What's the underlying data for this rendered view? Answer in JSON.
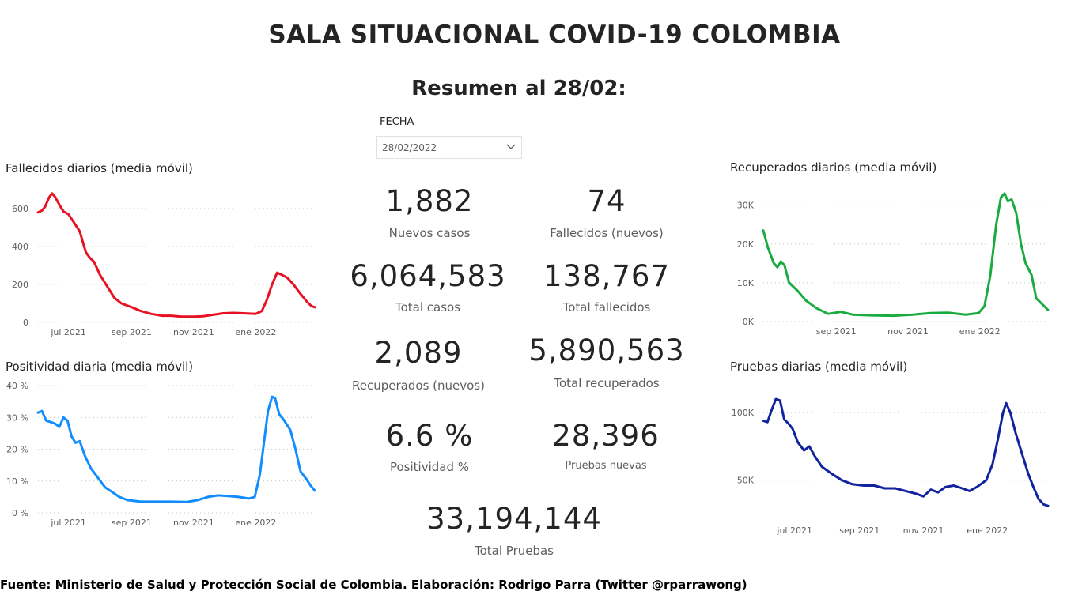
{
  "header": {
    "title": "SALA SITUACIONAL COVID-19 COLOMBIA",
    "subtitle": "Resumen al 28/02:"
  },
  "filter": {
    "label": "FECHA",
    "value": "28/02/2022",
    "icon": "chevron-down-icon"
  },
  "kpis": {
    "nuevos_casos": {
      "value": "1,882",
      "label": "Nuevos casos"
    },
    "fallecidos_nuevos": {
      "value": "74",
      "label": "Fallecidos (nuevos)"
    },
    "total_casos": {
      "value": "6,064,583",
      "label": "Total casos"
    },
    "total_fallecidos": {
      "value": "138,767",
      "label": "Total fallecidos"
    },
    "recuperados_nuevos": {
      "value": "2,089",
      "label": "Recuperados (nuevos)"
    },
    "total_recuperados": {
      "value": "5,890,563",
      "label": "Total recuperados"
    },
    "positividad": {
      "value": "6.6 %",
      "label": "Positividad %"
    },
    "pruebas_nuevas": {
      "value": "28,396",
      "label": "Pruebas nuevas"
    },
    "total_pruebas": {
      "value": "33,194,144",
      "label": "Total Pruebas"
    }
  },
  "footer": {
    "text": "Fuente: Ministerio de Salud y Protección Social de Colombia. Elaboración: Rodrigo Parra (Twitter @rparrawong)"
  },
  "chart_data": [
    {
      "id": "fallecidos",
      "type": "line",
      "title": "Fallecidos diarios (media móvil)",
      "color": "#e81123",
      "x_range": [
        "2021-06-01",
        "2022-02-28"
      ],
      "x_ticks": [
        {
          "date": "2021-07-01",
          "label": "jul 2021"
        },
        {
          "date": "2021-09-01",
          "label": "sep 2021"
        },
        {
          "date": "2021-11-01",
          "label": "nov 2021"
        },
        {
          "date": "2022-01-01",
          "label": "ene 2022"
        }
      ],
      "ylim": [
        0,
        700
      ],
      "y_ticks": [
        {
          "value": 0,
          "label": "0"
        },
        {
          "value": 200,
          "label": "200"
        },
        {
          "value": 400,
          "label": "400"
        },
        {
          "value": 600,
          "label": "600"
        }
      ],
      "grid": true,
      "points": [
        [
          "2021-06-01",
          580
        ],
        [
          "2021-06-05",
          590
        ],
        [
          "2021-06-08",
          610
        ],
        [
          "2021-06-12",
          660
        ],
        [
          "2021-06-15",
          680
        ],
        [
          "2021-06-18",
          660
        ],
        [
          "2021-06-22",
          620
        ],
        [
          "2021-06-26",
          585
        ],
        [
          "2021-07-01",
          570
        ],
        [
          "2021-07-06",
          530
        ],
        [
          "2021-07-12",
          480
        ],
        [
          "2021-07-18",
          370
        ],
        [
          "2021-07-22",
          340
        ],
        [
          "2021-07-26",
          320
        ],
        [
          "2021-08-01",
          250
        ],
        [
          "2021-08-08",
          190
        ],
        [
          "2021-08-15",
          130
        ],
        [
          "2021-08-22",
          100
        ],
        [
          "2021-09-01",
          80
        ],
        [
          "2021-09-10",
          60
        ],
        [
          "2021-09-20",
          45
        ],
        [
          "2021-10-01",
          35
        ],
        [
          "2021-10-10",
          35
        ],
        [
          "2021-10-20",
          30
        ],
        [
          "2021-11-01",
          30
        ],
        [
          "2021-11-10",
          32
        ],
        [
          "2021-11-20",
          40
        ],
        [
          "2021-11-30",
          48
        ],
        [
          "2021-12-10",
          50
        ],
        [
          "2021-12-20",
          48
        ],
        [
          "2022-01-01",
          45
        ],
        [
          "2022-01-07",
          60
        ],
        [
          "2022-01-12",
          120
        ],
        [
          "2022-01-17",
          200
        ],
        [
          "2022-01-22",
          262
        ],
        [
          "2022-01-27",
          250
        ],
        [
          "2022-02-01",
          235
        ],
        [
          "2022-02-07",
          200
        ],
        [
          "2022-02-14",
          150
        ],
        [
          "2022-02-21",
          105
        ],
        [
          "2022-02-25",
          85
        ],
        [
          "2022-02-28",
          80
        ]
      ]
    },
    {
      "id": "positividad",
      "type": "line",
      "title": "Positividad diaria (media móvil)",
      "color": "#118dff",
      "x_range": [
        "2021-06-01",
        "2022-02-28"
      ],
      "x_ticks": [
        {
          "date": "2021-07-01",
          "label": "jul 2021"
        },
        {
          "date": "2021-09-01",
          "label": "sep 2021"
        },
        {
          "date": "2021-11-01",
          "label": "nov 2021"
        },
        {
          "date": "2022-01-01",
          "label": "ene 2022"
        }
      ],
      "ylim": [
        0,
        40
      ],
      "y_ticks": [
        {
          "value": 0,
          "label": "0 %"
        },
        {
          "value": 10,
          "label": "10 %"
        },
        {
          "value": 20,
          "label": "20 %"
        },
        {
          "value": 30,
          "label": "30 %"
        },
        {
          "value": 40,
          "label": "40 %"
        }
      ],
      "grid": true,
      "points": [
        [
          "2021-06-01",
          31.5
        ],
        [
          "2021-06-05",
          32
        ],
        [
          "2021-06-09",
          29
        ],
        [
          "2021-06-14",
          28.5
        ],
        [
          "2021-06-18",
          28
        ],
        [
          "2021-06-22",
          27
        ],
        [
          "2021-06-26",
          30
        ],
        [
          "2021-06-30",
          29
        ],
        [
          "2021-07-04",
          24
        ],
        [
          "2021-07-08",
          22
        ],
        [
          "2021-07-12",
          22.5
        ],
        [
          "2021-07-17",
          18
        ],
        [
          "2021-07-23",
          14
        ],
        [
          "2021-07-30",
          11
        ],
        [
          "2021-08-06",
          8
        ],
        [
          "2021-08-13",
          6.5
        ],
        [
          "2021-08-20",
          5
        ],
        [
          "2021-08-28",
          4
        ],
        [
          "2021-09-10",
          3.5
        ],
        [
          "2021-09-25",
          3.5
        ],
        [
          "2021-10-10",
          3.5
        ],
        [
          "2021-10-25",
          3.4
        ],
        [
          "2021-11-05",
          4
        ],
        [
          "2021-11-15",
          5
        ],
        [
          "2021-11-25",
          5.5
        ],
        [
          "2021-12-05",
          5.3
        ],
        [
          "2021-12-15",
          5
        ],
        [
          "2021-12-25",
          4.5
        ],
        [
          "2021-12-31",
          5
        ],
        [
          "2022-01-05",
          12
        ],
        [
          "2022-01-09",
          22
        ],
        [
          "2022-01-13",
          32
        ],
        [
          "2022-01-17",
          36.5
        ],
        [
          "2022-01-20",
          36
        ],
        [
          "2022-01-24",
          31
        ],
        [
          "2022-01-29",
          29
        ],
        [
          "2022-02-04",
          26
        ],
        [
          "2022-02-09",
          20
        ],
        [
          "2022-02-14",
          13
        ],
        [
          "2022-02-20",
          10.5
        ],
        [
          "2022-02-24",
          8.5
        ],
        [
          "2022-02-28",
          7
        ]
      ]
    },
    {
      "id": "recuperados",
      "type": "line",
      "title": "Recuperados diarios (media móvil)",
      "color": "#1aab40",
      "x_range": [
        "2021-07-01",
        "2022-02-28"
      ],
      "x_ticks": [
        {
          "date": "2021-09-01",
          "label": "sep 2021"
        },
        {
          "date": "2021-11-01",
          "label": "nov 2021"
        },
        {
          "date": "2022-01-01",
          "label": "ene 2022"
        }
      ],
      "ylim": [
        0,
        34000
      ],
      "y_ticks": [
        {
          "value": 0,
          "label": "0K"
        },
        {
          "value": 10000,
          "label": "10K"
        },
        {
          "value": 20000,
          "label": "20K"
        },
        {
          "value": 30000,
          "label": "30K"
        }
      ],
      "grid": true,
      "points": [
        [
          "2021-07-01",
          23500
        ],
        [
          "2021-07-05",
          19000
        ],
        [
          "2021-07-10",
          15000
        ],
        [
          "2021-07-13",
          14000
        ],
        [
          "2021-07-16",
          15500
        ],
        [
          "2021-07-19",
          14500
        ],
        [
          "2021-07-23",
          10000
        ],
        [
          "2021-07-30",
          8000
        ],
        [
          "2021-08-06",
          5500
        ],
        [
          "2021-08-15",
          3500
        ],
        [
          "2021-08-25",
          2000
        ],
        [
          "2021-09-05",
          2500
        ],
        [
          "2021-09-15",
          1800
        ],
        [
          "2021-10-01",
          1600
        ],
        [
          "2021-10-20",
          1500
        ],
        [
          "2021-11-05",
          1800
        ],
        [
          "2021-11-20",
          2200
        ],
        [
          "2021-12-05",
          2300
        ],
        [
          "2021-12-20",
          1800
        ],
        [
          "2021-12-31",
          2200
        ],
        [
          "2022-01-05",
          4000
        ],
        [
          "2022-01-10",
          12000
        ],
        [
          "2022-01-15",
          25000
        ],
        [
          "2022-01-19",
          32000
        ],
        [
          "2022-01-22",
          33000
        ],
        [
          "2022-01-25",
          31000
        ],
        [
          "2022-01-28",
          31500
        ],
        [
          "2022-02-01",
          28000
        ],
        [
          "2022-02-05",
          20000
        ],
        [
          "2022-02-09",
          15000
        ],
        [
          "2022-02-14",
          12000
        ],
        [
          "2022-02-18",
          6000
        ],
        [
          "2022-02-23",
          4500
        ],
        [
          "2022-02-28",
          3000
        ]
      ]
    },
    {
      "id": "pruebas",
      "type": "line",
      "title": "Pruebas diarias (media móvil)",
      "color": "#12239e",
      "x_range": [
        "2021-06-01",
        "2022-02-28"
      ],
      "x_ticks": [
        {
          "date": "2021-07-01",
          "label": "jul 2021"
        },
        {
          "date": "2021-09-01",
          "label": "sep 2021"
        },
        {
          "date": "2021-11-01",
          "label": "nov 2021"
        },
        {
          "date": "2022-01-01",
          "label": "ene 2022"
        }
      ],
      "ylim": [
        20000,
        120000
      ],
      "y_ticks": [
        {
          "value": 50000,
          "label": "50K"
        },
        {
          "value": 100000,
          "label": "100K"
        }
      ],
      "grid": true,
      "points": [
        [
          "2021-06-01",
          94000
        ],
        [
          "2021-06-05",
          93000
        ],
        [
          "2021-06-09",
          102000
        ],
        [
          "2021-06-13",
          110000
        ],
        [
          "2021-06-17",
          109000
        ],
        [
          "2021-06-21",
          95000
        ],
        [
          "2021-06-25",
          92000
        ],
        [
          "2021-06-29",
          88000
        ],
        [
          "2021-07-04",
          78000
        ],
        [
          "2021-07-10",
          72000
        ],
        [
          "2021-07-15",
          75000
        ],
        [
          "2021-07-20",
          68000
        ],
        [
          "2021-07-27",
          60000
        ],
        [
          "2021-08-05",
          55000
        ],
        [
          "2021-08-15",
          50000
        ],
        [
          "2021-08-25",
          47000
        ],
        [
          "2021-09-05",
          46000
        ],
        [
          "2021-09-15",
          46000
        ],
        [
          "2021-09-25",
          44000
        ],
        [
          "2021-10-05",
          44000
        ],
        [
          "2021-10-15",
          42000
        ],
        [
          "2021-10-25",
          40000
        ],
        [
          "2021-11-01",
          38000
        ],
        [
          "2021-11-08",
          43000
        ],
        [
          "2021-11-15",
          41000
        ],
        [
          "2021-11-22",
          45000
        ],
        [
          "2021-11-30",
          46000
        ],
        [
          "2021-12-08",
          44000
        ],
        [
          "2021-12-15",
          42000
        ],
        [
          "2021-12-22",
          45000
        ],
        [
          "2021-12-31",
          50000
        ],
        [
          "2022-01-06",
          62000
        ],
        [
          "2022-01-11",
          80000
        ],
        [
          "2022-01-16",
          100000
        ],
        [
          "2022-01-19",
          107000
        ],
        [
          "2022-01-23",
          100000
        ],
        [
          "2022-01-28",
          85000
        ],
        [
          "2022-02-03",
          70000
        ],
        [
          "2022-02-09",
          55000
        ],
        [
          "2022-02-14",
          45000
        ],
        [
          "2022-02-19",
          36000
        ],
        [
          "2022-02-24",
          32000
        ],
        [
          "2022-02-28",
          31000
        ]
      ]
    }
  ]
}
